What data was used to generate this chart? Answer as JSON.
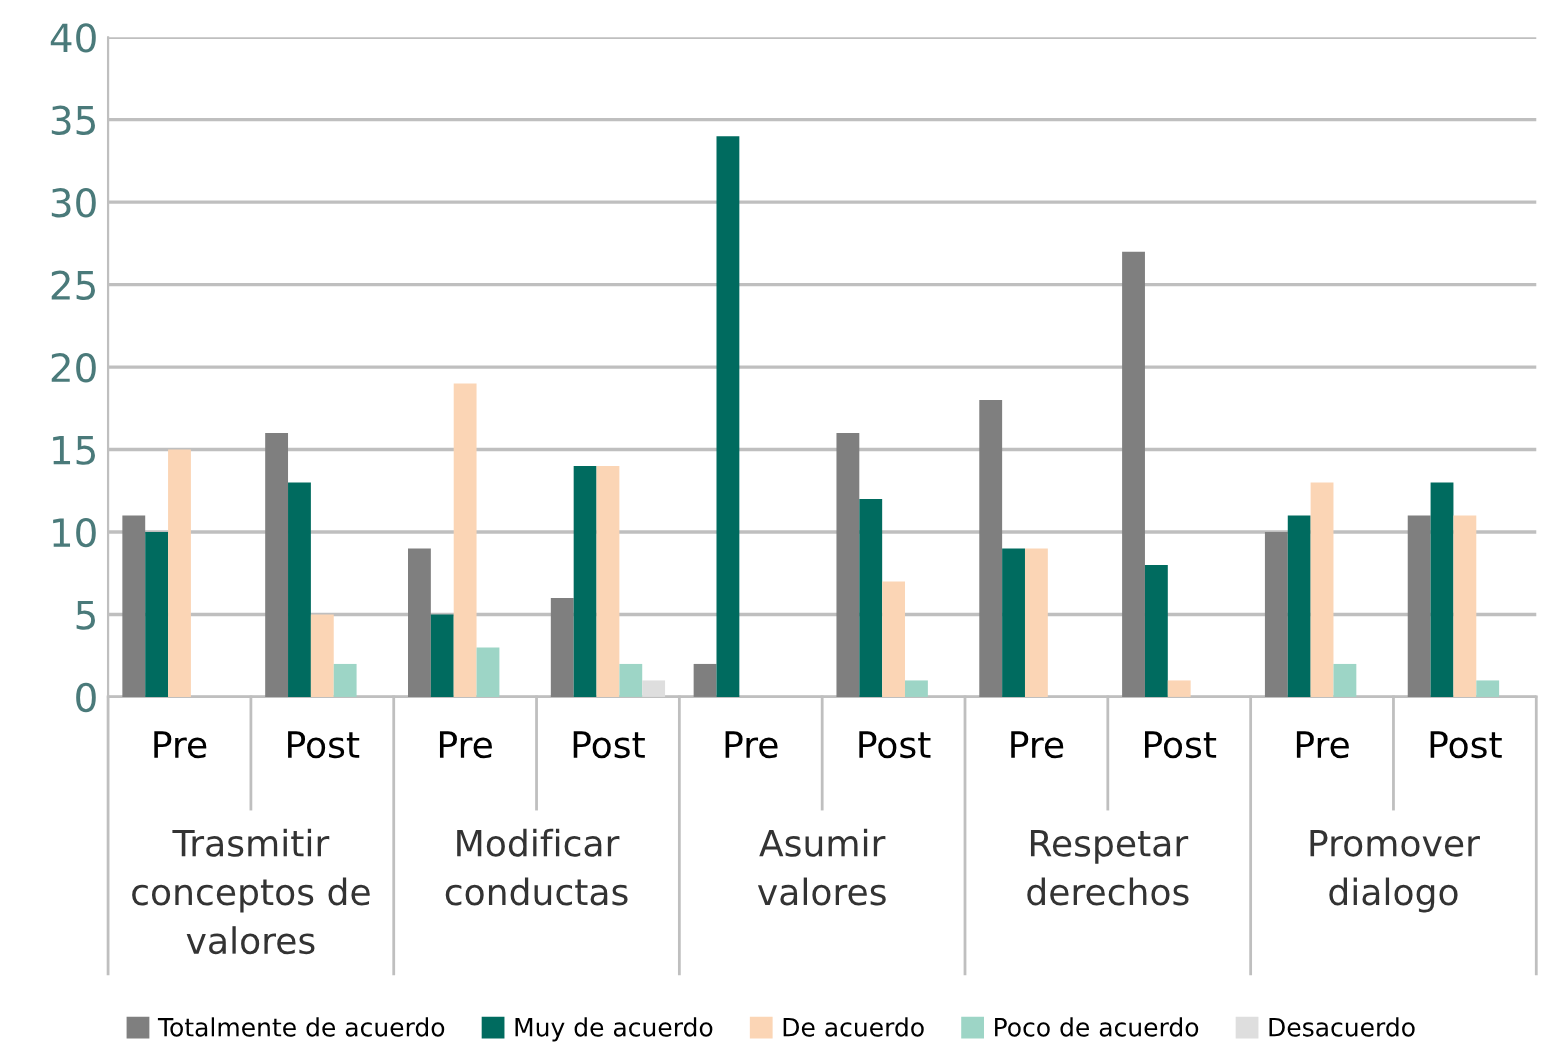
{
  "chart_data": {
    "type": "bar",
    "categories": [
      "Pre",
      "Post",
      "Pre",
      "Post",
      "Pre",
      "Post",
      "Pre",
      "Post",
      "Pre",
      "Post"
    ],
    "series": [
      {
        "name": "Totalmente de acuerdo",
        "color": "#7f7f7f",
        "values": [
          11,
          16,
          9,
          6,
          2,
          16,
          18,
          27,
          10,
          11
        ]
      },
      {
        "name": "Muy de acuerdo",
        "color": "#006b5f",
        "values": [
          10,
          13,
          5,
          14,
          34,
          12,
          9,
          8,
          11,
          13
        ]
      },
      {
        "name": "De acuerdo",
        "color": "#fbd5b5",
        "values": [
          15,
          5,
          19,
          14,
          0,
          7,
          9,
          1,
          13,
          11
        ]
      },
      {
        "name": "Poco de acuerdo",
        "color": "#9dd5c6",
        "values": [
          0,
          2,
          3,
          2,
          0,
          1,
          0,
          0,
          2,
          1
        ]
      },
      {
        "name": "Desacuerdo",
        "color": "#dedede",
        "values": [
          0,
          0,
          0,
          1,
          0,
          0,
          0,
          0,
          0,
          0
        ]
      }
    ],
    "annotations": [
      "Trasmitir\nconceptos de\nvalores",
      "Modificar\nconductas",
      "Asumir\nvalores",
      "Respetar\nderechos",
      "Promover\ndialogo"
    ],
    "ylim": [
      0,
      40
    ],
    "yticks": [
      0,
      5,
      10,
      15,
      20,
      25,
      30,
      35,
      40
    ],
    "grid": "y",
    "legend": "bottom"
  }
}
